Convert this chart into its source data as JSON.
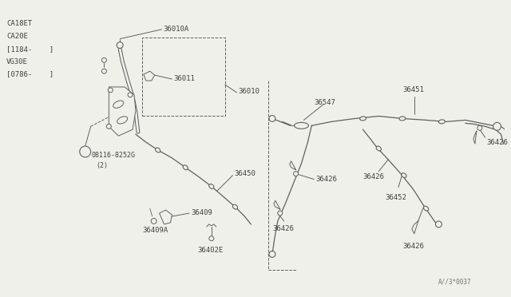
{
  "bg_color": "#f0f0eb",
  "line_color": "#606060",
  "text_color": "#404040",
  "fig_width": 6.4,
  "fig_height": 3.72,
  "dpi": 100,
  "engine_labels": [
    [
      "CA18ET",
      0.05,
      3.55
    ],
    [
      "CA20E",
      0.05,
      3.42
    ],
    [
      "[1184-    ]",
      0.05,
      3.29
    ],
    [
      "VG30E",
      0.05,
      3.16
    ],
    [
      "[0786-    ]",
      0.05,
      3.03
    ]
  ],
  "ref_num": [
    "A//3*0037",
    5.42,
    0.12
  ]
}
